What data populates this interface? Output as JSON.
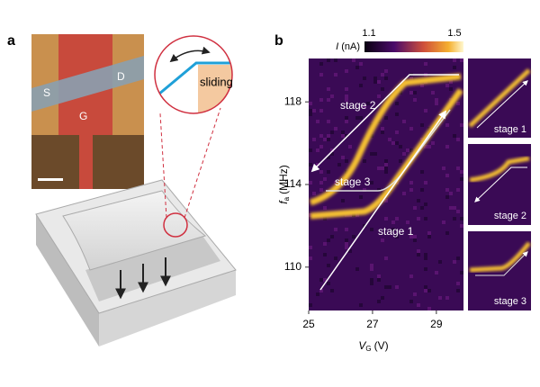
{
  "panel_a": {
    "label": "a",
    "electrodes": {
      "source": "S",
      "drain": "D",
      "gate": "G"
    },
    "inset_label": "sliding"
  },
  "panel_b": {
    "label": "b",
    "colorbar": {
      "symbol": "I",
      "unit": "(nA)",
      "lim": [
        1.1,
        1.5
      ],
      "ticks": [
        1.1,
        1.5
      ]
    },
    "xlabel": {
      "symbol": "V",
      "subscript": "G",
      "unit": "(V)"
    },
    "ylabel": {
      "symbol": "f",
      "subscript": "a",
      "unit": "(MHz)"
    },
    "xlim": [
      25,
      29.85
    ],
    "ylim": [
      107.9,
      120.1
    ],
    "xticks": [
      25,
      27,
      29
    ],
    "yticks": [
      110,
      114,
      118
    ],
    "annotations": [
      "stage 2",
      "stage 3",
      "stage 1"
    ],
    "side_panels": [
      "stage 1",
      "stage 2",
      "stage 3"
    ]
  }
}
